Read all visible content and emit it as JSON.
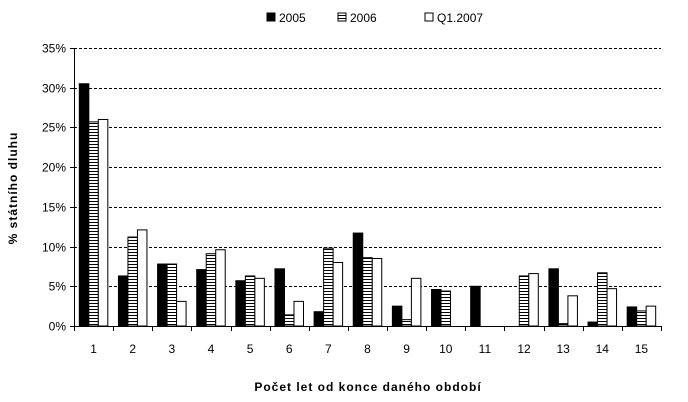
{
  "chart_data": {
    "type": "bar",
    "xlabel": "Počet let od konce daného období",
    "ylabel": "% státního dluhu",
    "ylim": [
      0,
      35
    ],
    "yticks": [
      "0%",
      "5%",
      "10%",
      "15%",
      "20%",
      "25%",
      "30%",
      "35%"
    ],
    "grid": "horizontal dashed",
    "legend_position": "top",
    "categories": [
      "1",
      "2",
      "3",
      "4",
      "5",
      "6",
      "7",
      "8",
      "9",
      "10",
      "11",
      "12",
      "13",
      "14",
      "15"
    ],
    "series": [
      {
        "name": "2005",
        "pattern": "solid",
        "color": "#000000",
        "values": [
          30.5,
          6.3,
          7.8,
          7.1,
          5.7,
          7.2,
          1.8,
          11.7,
          2.5,
          4.6,
          5.0,
          0.0,
          7.2,
          0.5,
          2.4
        ]
      },
      {
        "name": "2006",
        "pattern": "horizontal-stripes",
        "color": "#000000",
        "values": [
          25.7,
          11.2,
          7.8,
          9.1,
          6.3,
          1.4,
          9.8,
          8.6,
          0.8,
          4.4,
          0.0,
          6.3,
          0.3,
          6.7,
          1.9
        ]
      },
      {
        "name": "Q1.2007",
        "pattern": "hollow",
        "color": "#ffffff",
        "values": [
          26.0,
          12.1,
          3.1,
          9.6,
          6.0,
          3.1,
          8.0,
          8.5,
          6.0,
          0.0,
          0.0,
          6.6,
          3.8,
          4.7,
          2.5
        ]
      }
    ]
  }
}
